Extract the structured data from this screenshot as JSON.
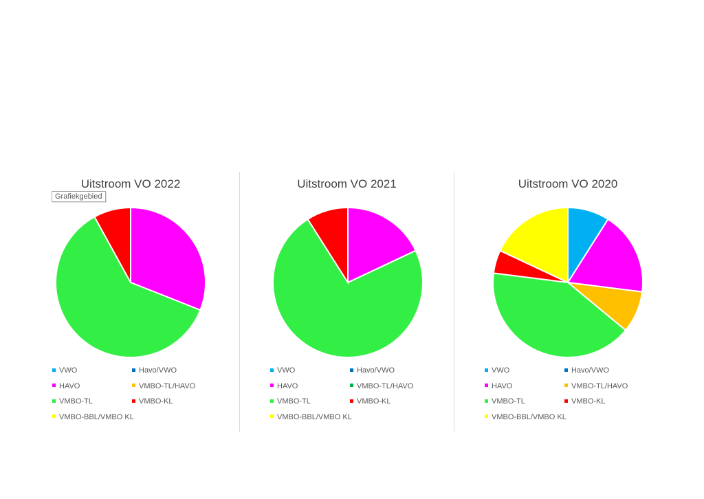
{
  "tooltip": "Grafiekgebied",
  "category_colors": {
    "VWO": "#00b0f0",
    "Havo/VWO": "#0070c0",
    "HAVO": "#ff00ff",
    "VMBO-TL/HAVO": "#ffc000",
    "VMBO-TL": "#33ee44",
    "VMBO-KL": "#ff0000",
    "VMBO-BBL/VMBO KL": "#ffff00"
  },
  "chart_data": [
    {
      "type": "pie",
      "title": "Uitstroom VO 2022",
      "categories": [
        "VWO",
        "Havo/VWO",
        "HAVO",
        "VMBO-TL/HAVO",
        "VMBO-TL",
        "VMBO-KL",
        "VMBO-BBL/VMBO KL"
      ],
      "values": [
        0,
        0,
        31,
        0,
        61,
        8,
        0
      ],
      "legend_position": "bottom",
      "legend_colors": [
        "#00b0f0",
        "#0070c0",
        "#ff00ff",
        "#ffc000",
        "#33ee44",
        "#ff0000",
        "#ffff00"
      ]
    },
    {
      "type": "pie",
      "title": "Uitstroom VO 2021",
      "categories": [
        "VWO",
        "Havo/VWO",
        "HAVO",
        "VMBO-TL/HAVO",
        "VMBO-TL",
        "VMBO-KL",
        "VMBO-BBL/VMBO KL"
      ],
      "values": [
        0,
        0,
        18,
        0,
        73,
        9,
        0
      ],
      "legend_position": "bottom",
      "legend_colors": [
        "#00b0f0",
        "#0070c0",
        "#ff00ff",
        "#00b050",
        "#33ee44",
        "#ff0000",
        "#ffff00"
      ]
    },
    {
      "type": "pie",
      "title": "Uitstroom VO 2020",
      "categories": [
        "VWO",
        "Havo/VWO",
        "HAVO",
        "VMBO-TL/HAVO",
        "VMBO-TL",
        "VMBO-KL",
        "VMBO-BBL/VMBO KL"
      ],
      "values": [
        9,
        0,
        18,
        9,
        41,
        5,
        18
      ],
      "legend_position": "bottom",
      "legend_colors": [
        "#00b0f0",
        "#0070c0",
        "#ff00ff",
        "#ffc000",
        "#33ee44",
        "#ff0000",
        "#ffff00"
      ]
    }
  ]
}
